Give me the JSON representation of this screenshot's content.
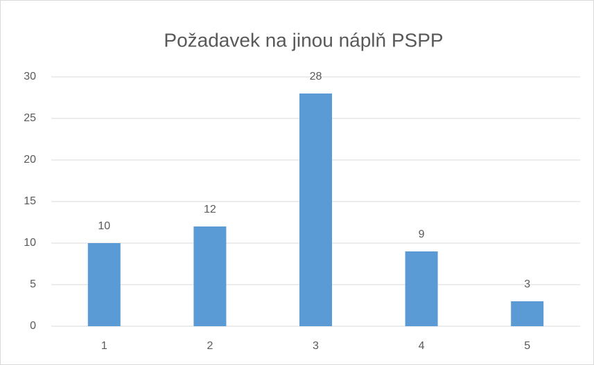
{
  "chart_data": {
    "type": "bar",
    "title": "Požadavek na jinou náplň PSPP",
    "categories": [
      "1",
      "2",
      "3",
      "4",
      "5"
    ],
    "values": [
      10,
      12,
      28,
      9,
      3
    ],
    "color": "#5b9bd5",
    "ylim": [
      0,
      30
    ],
    "yticks": [
      0,
      5,
      10,
      15,
      20,
      25,
      30
    ],
    "grid": true,
    "data_labels": true
  }
}
